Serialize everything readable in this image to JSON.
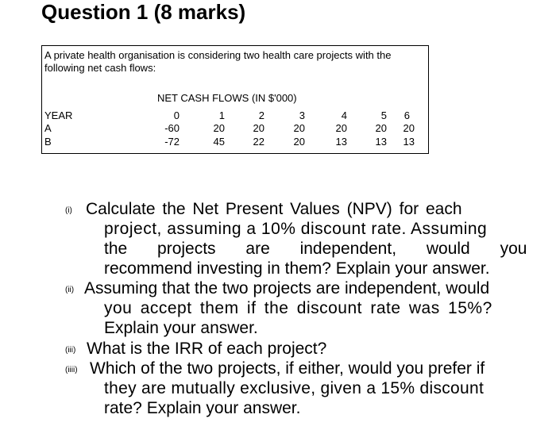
{
  "heading": "Question 1 (8 marks)",
  "intro": {
    "line1": "A private health organisation is considering two health care projects with the",
    "line2": "following net cash flows:"
  },
  "table": {
    "caption": "NET CASH FLOWS (IN $'000)",
    "rows": [
      {
        "label": "YEAR",
        "values": [
          "0",
          "1",
          "2",
          "3",
          "4",
          "5",
          "6"
        ]
      },
      {
        "label": "A",
        "values": [
          "-60",
          "20",
          "20",
          "20",
          "20",
          "20",
          "20"
        ]
      },
      {
        "label": "B",
        "values": [
          "-72",
          "45",
          "22",
          "20",
          "13",
          "13",
          "13"
        ]
      }
    ]
  },
  "questions": [
    {
      "number": "(i)",
      "lines": [
        "Calculate the Net Present Values (NPV) for each",
        "project, assuming a 10% discount rate. Assuming",
        "the projects are independent, would you",
        "recommend investing in them? Explain your answer."
      ]
    },
    {
      "number": "(ii)",
      "lines": [
        "Assuming that the two projects are independent, would",
        "you accept them if the discount rate was 15%?",
        "Explain your answer."
      ]
    },
    {
      "number": "(iii)",
      "lines": [
        "What is the IRR of each project?"
      ]
    },
    {
      "number": "(iiii)",
      "lines": [
        "Which of the two projects, if either, would you prefer if",
        "they are mutually exclusive, given a 15% discount",
        "rate? Explain your answer."
      ]
    }
  ]
}
